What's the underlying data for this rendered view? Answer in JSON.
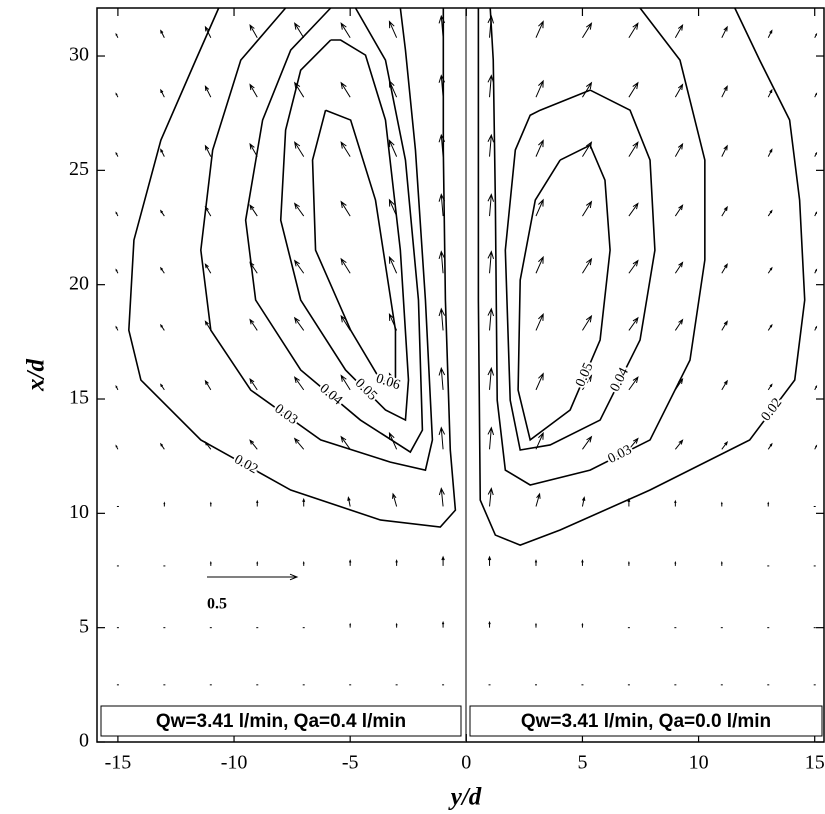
{
  "chart_data": {
    "type": "contour",
    "xlabel": "y/d",
    "ylabel": "x/d",
    "xlim": [
      -15.9,
      15.4
    ],
    "ylim": [
      0,
      32.1
    ],
    "xticks": [
      -15,
      -10,
      -5,
      0,
      5,
      10,
      15
    ],
    "yticks": [
      0,
      5,
      10,
      15,
      20,
      25,
      30
    ],
    "color": "#000000",
    "contours": [
      {
        "level": 0.02,
        "points": [
          [
            -10.66,
            32.1
          ],
          [
            -11.65,
            29.82
          ],
          [
            -13.15,
            26.32
          ],
          [
            -14.31,
            21.95
          ],
          [
            -14.53,
            18.01
          ],
          [
            -14.01,
            15.83
          ],
          [
            -11.43,
            13.21
          ],
          [
            -7.56,
            11.02
          ],
          [
            -3.7,
            9.71
          ],
          [
            -1.12,
            9.4
          ],
          [
            -0.47,
            10.14
          ],
          [
            -0.69,
            12.77
          ],
          [
            -0.9,
            19.33
          ],
          [
            -0.99,
            25.89
          ],
          [
            -0.99,
            32.1
          ]
        ]
      },
      {
        "level": 0.03,
        "points": [
          [
            -7.78,
            32.1
          ],
          [
            -9.71,
            29.82
          ],
          [
            -10.92,
            25.89
          ],
          [
            -11.43,
            21.51
          ],
          [
            -11.0,
            18.01
          ],
          [
            -9.28,
            15.39
          ],
          [
            -6.27,
            13.21
          ],
          [
            -3.27,
            12.24
          ],
          [
            -1.76,
            11.89
          ],
          [
            -1.46,
            13.21
          ],
          [
            -1.76,
            19.33
          ],
          [
            -2.19,
            25.89
          ],
          [
            -2.62,
            30.26
          ],
          [
            -2.84,
            32.1
          ]
        ]
      },
      {
        "level": 0.04,
        "points": [
          [
            -5.84,
            32.1
          ],
          [
            -7.56,
            30.26
          ],
          [
            -8.77,
            27.2
          ],
          [
            -9.5,
            22.82
          ],
          [
            -9.07,
            19.33
          ],
          [
            -7.13,
            16.27
          ],
          [
            -4.56,
            14.08
          ],
          [
            -2.41,
            12.68
          ],
          [
            -1.89,
            13.64
          ],
          [
            -2.06,
            19.33
          ],
          [
            -2.62,
            25.45
          ],
          [
            -3.48,
            29.82
          ],
          [
            -4.77,
            32.1
          ]
        ]
      },
      {
        "level": 0.05,
        "points": [
          [
            -5.84,
            30.7
          ],
          [
            -7.13,
            29.38
          ],
          [
            -7.78,
            26.76
          ],
          [
            -7.99,
            22.82
          ],
          [
            -7.13,
            19.33
          ],
          [
            -5.2,
            16.27
          ],
          [
            -3.48,
            14.52
          ],
          [
            -2.62,
            14.08
          ],
          [
            -2.49,
            15.83
          ],
          [
            -2.84,
            21.51
          ],
          [
            -3.48,
            27.2
          ],
          [
            -4.34,
            30.04
          ],
          [
            -5.41,
            30.7
          ],
          [
            -5.84,
            30.7
          ]
        ]
      },
      {
        "level": 0.06,
        "points": [
          [
            -6.06,
            27.63
          ],
          [
            -6.62,
            25.45
          ],
          [
            -6.49,
            21.51
          ],
          [
            -4.98,
            18.01
          ],
          [
            -3.7,
            15.83
          ],
          [
            -3.05,
            15.61
          ],
          [
            -3.05,
            18.01
          ],
          [
            -3.91,
            23.7
          ],
          [
            -4.98,
            27.2
          ],
          [
            -6.06,
            27.63
          ]
        ]
      },
      {
        "level": 0.02,
        "points": [
          [
            11.56,
            32.1
          ],
          [
            12.63,
            29.82
          ],
          [
            13.92,
            27.2
          ],
          [
            14.35,
            23.7
          ],
          [
            14.57,
            19.33
          ],
          [
            14.14,
            15.83
          ],
          [
            12.2,
            13.21
          ],
          [
            7.91,
            11.02
          ],
          [
            4.04,
            9.27
          ],
          [
            2.32,
            8.61
          ],
          [
            1.25,
            9.05
          ],
          [
            0.6,
            10.58
          ],
          [
            0.52,
            19.33
          ],
          [
            0.52,
            32.1
          ]
        ]
      },
      {
        "level": 0.03,
        "points": [
          [
            7.48,
            32.1
          ],
          [
            9.2,
            29.82
          ],
          [
            10.27,
            25.45
          ],
          [
            10.27,
            21.08
          ],
          [
            9.63,
            16.7
          ],
          [
            7.91,
            13.21
          ],
          [
            5.33,
            11.89
          ],
          [
            2.75,
            11.24
          ],
          [
            1.68,
            11.89
          ],
          [
            1.33,
            14.95
          ],
          [
            1.25,
            23.7
          ],
          [
            1.16,
            29.82
          ],
          [
            1.03,
            32.1
          ]
        ]
      },
      {
        "level": 0.04,
        "points": [
          [
            3.18,
            27.63
          ],
          [
            5.33,
            28.51
          ],
          [
            7.05,
            27.63
          ],
          [
            7.91,
            25.45
          ],
          [
            8.12,
            21.51
          ],
          [
            7.48,
            17.58
          ],
          [
            5.76,
            14.08
          ],
          [
            3.61,
            12.99
          ],
          [
            2.32,
            12.77
          ],
          [
            1.89,
            14.95
          ],
          [
            1.68,
            21.51
          ],
          [
            2.11,
            25.89
          ],
          [
            2.75,
            27.41
          ],
          [
            3.18,
            27.63
          ]
        ]
      },
      {
        "level": 0.05,
        "points": [
          [
            4.04,
            25.45
          ],
          [
            5.33,
            26.1
          ],
          [
            5.97,
            24.57
          ],
          [
            6.19,
            21.51
          ],
          [
            5.76,
            17.58
          ],
          [
            4.47,
            14.52
          ],
          [
            2.75,
            13.21
          ],
          [
            2.23,
            15.39
          ],
          [
            2.32,
            20.2
          ],
          [
            2.97,
            23.7
          ],
          [
            4.04,
            25.45
          ]
        ]
      }
    ],
    "vectors": {
      "x": [
        2.5,
        5,
        7.7,
        10.3,
        12.8,
        15.4,
        18,
        20.5,
        23,
        25.6,
        28.2,
        30.8
      ],
      "y": [
        -15,
        -13,
        -11,
        -9,
        -7,
        -5,
        -3,
        -1,
        1,
        3,
        5,
        7,
        9,
        11,
        13,
        15
      ],
      "u": [
        [
          0,
          0,
          0,
          0,
          0,
          0,
          0,
          0,
          0,
          0,
          0,
          0,
          0,
          0,
          0,
          0
        ],
        [
          0,
          0,
          0,
          0,
          0,
          0,
          0,
          0,
          0,
          0,
          0,
          0,
          0,
          0,
          0,
          0
        ],
        [
          0,
          0,
          0,
          0,
          0,
          0,
          0,
          0,
          0,
          0,
          0,
          0,
          0,
          0,
          0,
          0
        ],
        [
          0,
          0,
          0,
          0,
          0,
          -0.01,
          -0.02,
          -0.01,
          0.01,
          0.02,
          0.01,
          0,
          0,
          0,
          0,
          0
        ],
        [
          -0.01,
          -0.02,
          -0.03,
          -0.04,
          -0.05,
          -0.05,
          -0.04,
          -0.01,
          0.01,
          0.04,
          0.05,
          0.05,
          0.04,
          0.03,
          0.02,
          0.01
        ],
        [
          -0.01,
          -0.02,
          -0.03,
          -0.04,
          -0.05,
          -0.05,
          -0.04,
          -0.01,
          0.01,
          0.04,
          0.05,
          0.05,
          0.04,
          0.03,
          0.02,
          0.01
        ],
        [
          -0.01,
          -0.02,
          -0.03,
          -0.04,
          -0.05,
          -0.05,
          -0.04,
          -0.01,
          0.01,
          0.04,
          0.05,
          0.05,
          0.04,
          0.03,
          0.02,
          0.01
        ],
        [
          -0.01,
          -0.02,
          -0.03,
          -0.04,
          -0.05,
          -0.05,
          -0.04,
          -0.01,
          0.01,
          0.04,
          0.05,
          0.05,
          0.04,
          0.03,
          0.02,
          0.01
        ],
        [
          -0.01,
          -0.02,
          -0.03,
          -0.04,
          -0.05,
          -0.05,
          -0.04,
          -0.01,
          0.01,
          0.04,
          0.05,
          0.05,
          0.04,
          0.03,
          0.02,
          0.01
        ],
        [
          -0.01,
          -0.02,
          -0.03,
          -0.04,
          -0.05,
          -0.05,
          -0.04,
          -0.01,
          0.01,
          0.04,
          0.05,
          0.05,
          0.04,
          0.03,
          0.02,
          0.01
        ],
        [
          -0.01,
          -0.02,
          -0.03,
          -0.04,
          -0.05,
          -0.05,
          -0.04,
          -0.01,
          0.01,
          0.04,
          0.05,
          0.05,
          0.04,
          0.03,
          0.02,
          0.01
        ],
        [
          -0.01,
          -0.02,
          -0.03,
          -0.04,
          -0.05,
          -0.05,
          -0.04,
          -0.01,
          0.01,
          0.04,
          0.05,
          0.05,
          0.04,
          0.03,
          0.02,
          0.01
        ]
      ],
      "v": [
        [
          0,
          0,
          0,
          0.01,
          0.01,
          0.01,
          0.01,
          0.01,
          0.01,
          0.01,
          0.01,
          0.01,
          0.01,
          0,
          0,
          0
        ],
        [
          0.01,
          0.01,
          0.01,
          0.01,
          0.01,
          0.02,
          0.02,
          0.03,
          0.03,
          0.02,
          0.02,
          0.01,
          0.01,
          0.01,
          0.01,
          0.01
        ],
        [
          0.01,
          0.01,
          0.02,
          0.02,
          0.02,
          0.03,
          0.03,
          0.05,
          0.05,
          0.03,
          0.03,
          0.02,
          0.02,
          0.02,
          0.01,
          0.01
        ],
        [
          0.01,
          0.02,
          0.02,
          0.03,
          0.04,
          0.05,
          0.07,
          0.1,
          0.1,
          0.07,
          0.05,
          0.04,
          0.03,
          0.02,
          0.02,
          0.01
        ],
        [
          0.02,
          0.03,
          0.04,
          0.05,
          0.06,
          0.07,
          0.09,
          0.12,
          0.12,
          0.09,
          0.07,
          0.06,
          0.05,
          0.04,
          0.03,
          0.02
        ],
        [
          0.02,
          0.03,
          0.05,
          0.06,
          0.07,
          0.08,
          0.09,
          0.12,
          0.12,
          0.09,
          0.08,
          0.07,
          0.06,
          0.05,
          0.03,
          0.02
        ],
        [
          0.02,
          0.03,
          0.05,
          0.06,
          0.07,
          0.08,
          0.09,
          0.12,
          0.12,
          0.09,
          0.08,
          0.07,
          0.06,
          0.05,
          0.03,
          0.02
        ],
        [
          0.02,
          0.03,
          0.05,
          0.06,
          0.07,
          0.08,
          0.09,
          0.12,
          0.12,
          0.09,
          0.08,
          0.07,
          0.06,
          0.05,
          0.03,
          0.02
        ],
        [
          0.02,
          0.03,
          0.05,
          0.06,
          0.07,
          0.08,
          0.09,
          0.12,
          0.12,
          0.09,
          0.08,
          0.07,
          0.06,
          0.05,
          0.03,
          0.02
        ],
        [
          0.02,
          0.04,
          0.06,
          0.07,
          0.08,
          0.08,
          0.09,
          0.12,
          0.12,
          0.09,
          0.08,
          0.08,
          0.07,
          0.06,
          0.04,
          0.02
        ],
        [
          0.02,
          0.04,
          0.06,
          0.07,
          0.08,
          0.08,
          0.09,
          0.12,
          0.12,
          0.09,
          0.08,
          0.08,
          0.07,
          0.06,
          0.04,
          0.02
        ],
        [
          0.02,
          0.04,
          0.06,
          0.07,
          0.08,
          0.08,
          0.09,
          0.12,
          0.12,
          0.09,
          0.08,
          0.08,
          0.07,
          0.06,
          0.04,
          0.02
        ]
      ]
    },
    "reference_vector": 0.5,
    "annotations": [
      "Qw=3.41 l/min, Qa=0.4 l/min",
      "Qw=3.41 l/min, Qa=0.0 l/min"
    ]
  }
}
